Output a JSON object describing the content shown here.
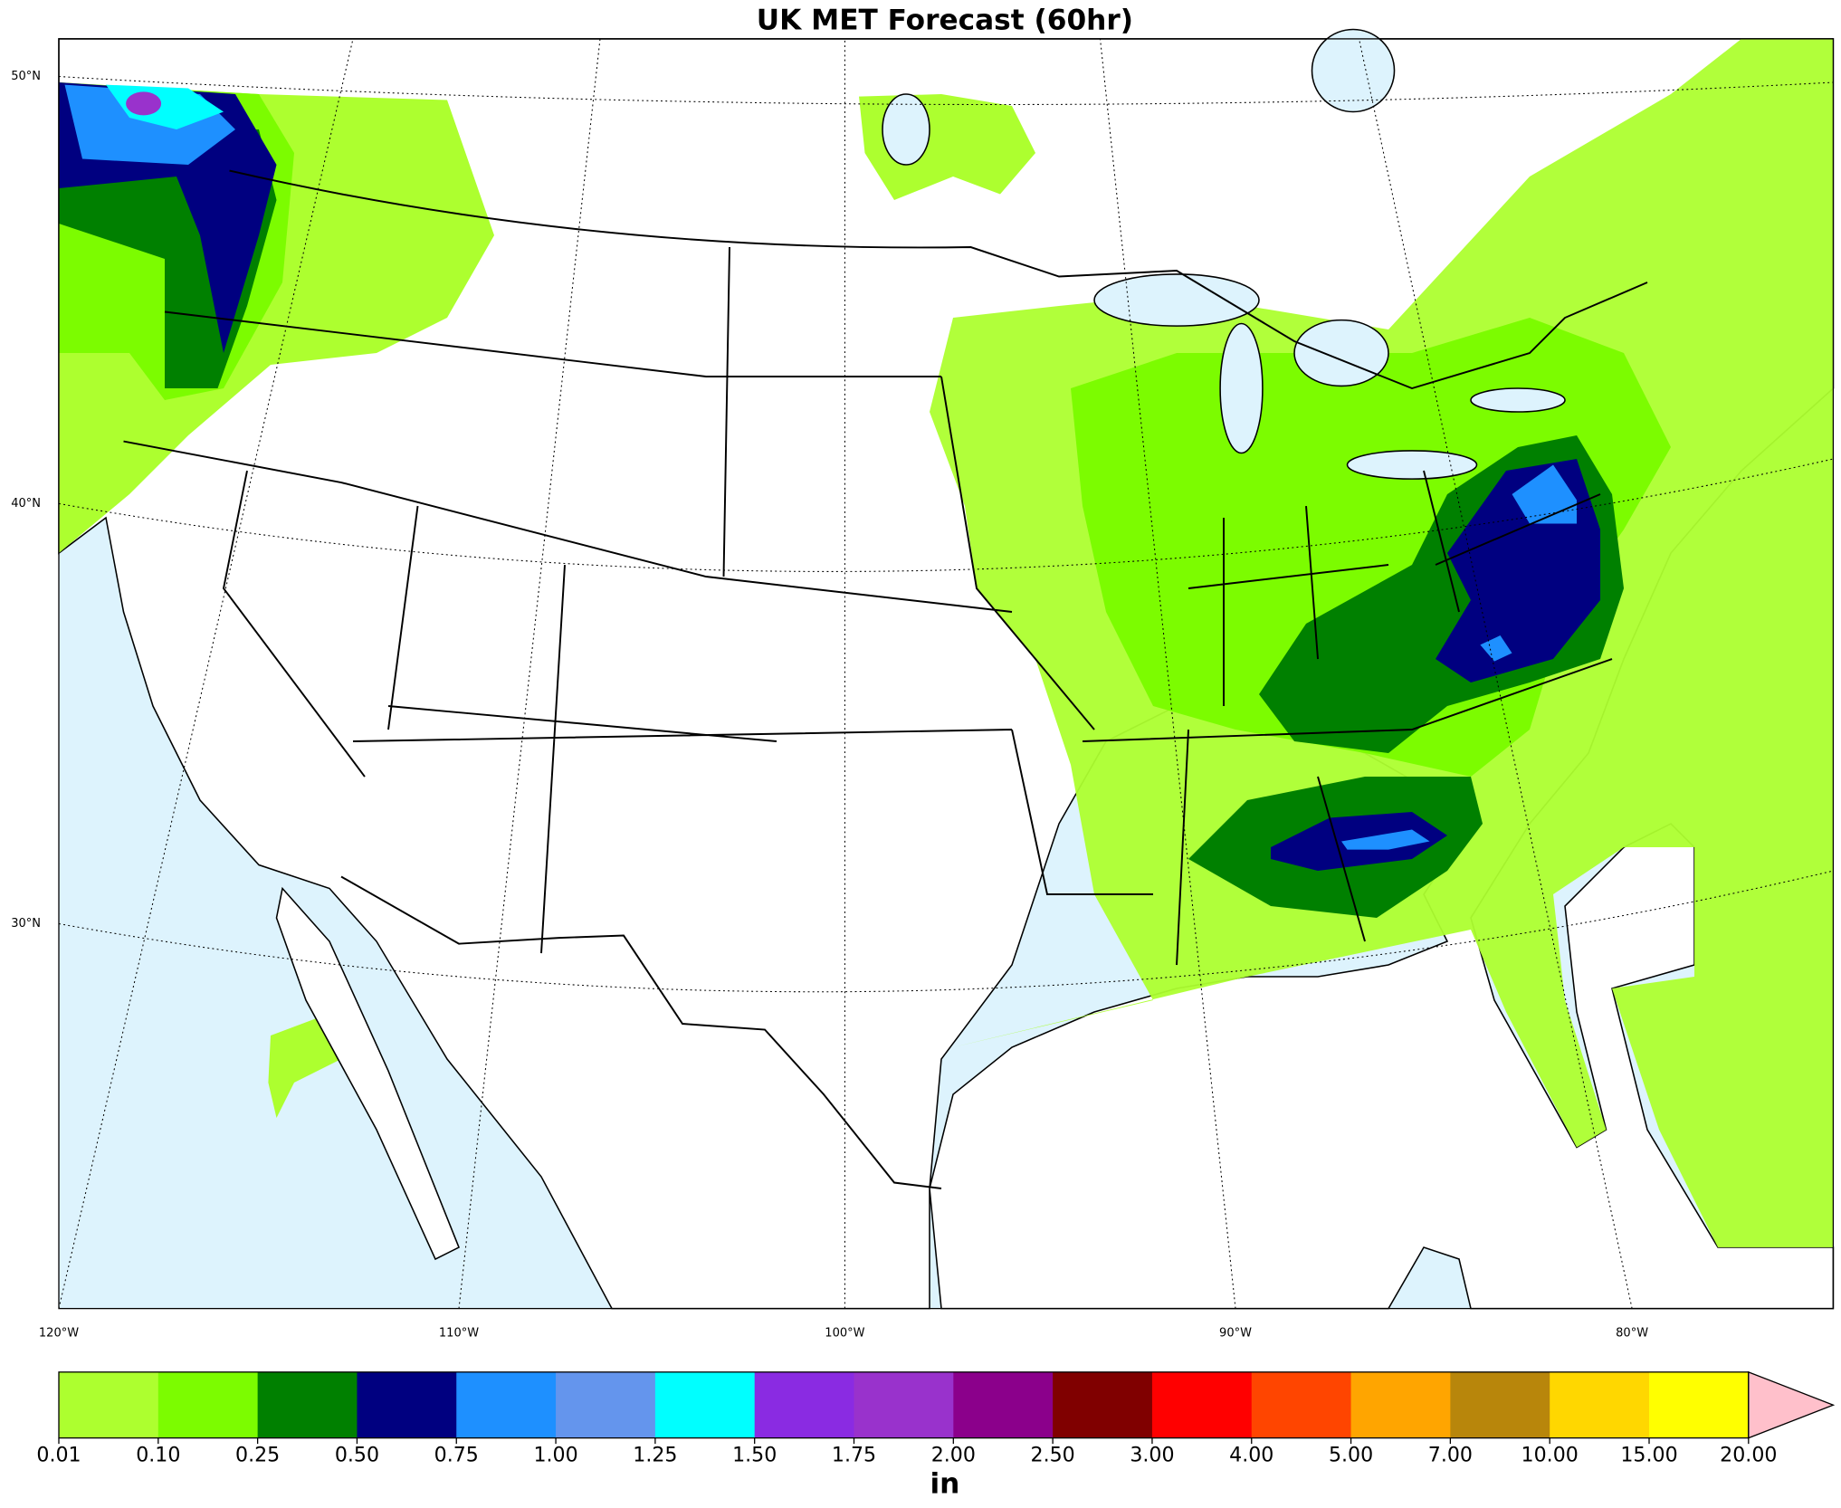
{
  "title": "UK MET Forecast (60hr)",
  "map": {
    "lat_labels": [
      "50°N",
      "40°N",
      "30°N"
    ],
    "lon_labels": [
      "120°W",
      "110°W",
      "100°W",
      "90°W",
      "80°W"
    ]
  },
  "colorbar": {
    "label": "in",
    "ticks": [
      0.01,
      {
        "value": 0.1,
        "label": "0.10"
      },
      0.25,
      {
        "value": 0.5,
        "label": "0.50"
      },
      0.75,
      {
        "value": 1,
        "label": "1.00"
      },
      1.25,
      {
        "value": 1.5,
        "label": "1.50"
      },
      1.75,
      {
        "value": 2,
        "label": "2.00"
      },
      {
        "value": 2.5,
        "label": "2.50"
      },
      {
        "value": 3,
        "label": "3.00"
      },
      {
        "value": 4,
        "label": "4.00"
      },
      {
        "value": 5,
        "label": "5.00"
      },
      {
        "value": 7,
        "label": "7.00"
      },
      {
        "value": 10,
        "label": "10.00"
      },
      {
        "value": 15,
        "label": "15.00"
      },
      {
        "value": 20,
        "label": "20.00"
      }
    ],
    "colors": [
      "#adff2f",
      "#7cfc00",
      "#008000",
      "#000080",
      "#1e90ff",
      "#6495ed",
      "#00ffff",
      "#8a2be2",
      "#9932cc",
      "#8b008b",
      "#800000",
      "#ff0000",
      "#ff4500",
      "#ffa500",
      "#b8860b",
      "#ffd700",
      "#ffff00"
    ],
    "extend_color": "#ffc0cb"
  }
}
